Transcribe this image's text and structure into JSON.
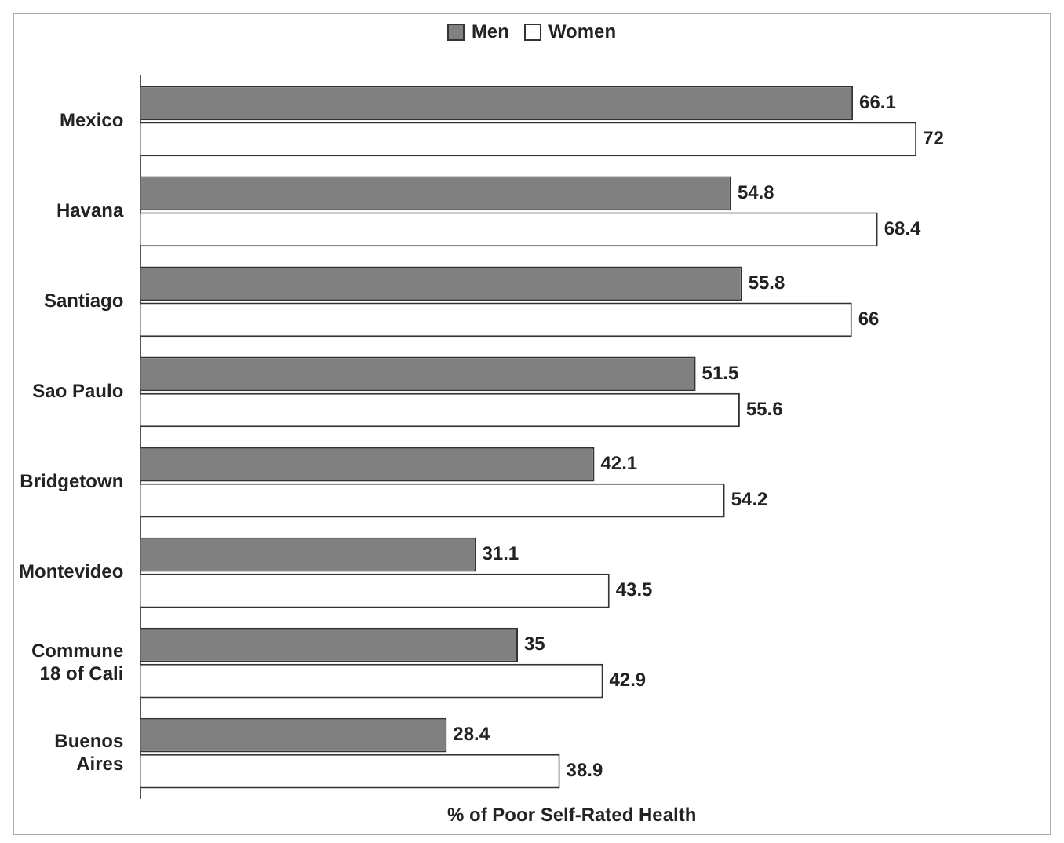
{
  "chart_data": {
    "type": "bar",
    "orientation": "horizontal",
    "xlabel": "% of Poor Self-Rated Health",
    "categories": [
      "Mexico",
      "Havana",
      "Santiago",
      "Sao Paulo",
      "Bridgetown",
      "Montevideo",
      "Commune 18 of Cali",
      "Buenos Aires"
    ],
    "series": [
      {
        "name": "Men",
        "color": "#808080",
        "values": [
          66.1,
          54.8,
          55.8,
          51.5,
          42.1,
          31.1,
          35,
          28.4
        ]
      },
      {
        "name": "Women",
        "color": "#ffffff",
        "values": [
          72,
          68.4,
          66,
          55.6,
          54.2,
          43.5,
          42.9,
          38.9
        ]
      }
    ],
    "data_labels": true,
    "grid": false,
    "legend": "top"
  }
}
